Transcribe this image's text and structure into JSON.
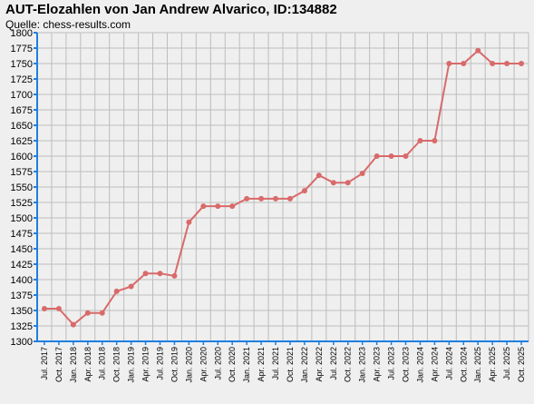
{
  "chart_data": {
    "type": "line",
    "title": "AUT-Elozahlen von Jan Andrew Alvarico, ID:134882",
    "subtitle": "Quelle: chess-results.com",
    "xlabel": "",
    "ylabel": "",
    "ylim": [
      1300,
      1800
    ],
    "yticks": [
      1300,
      1325,
      1350,
      1375,
      1400,
      1425,
      1450,
      1475,
      1500,
      1525,
      1550,
      1575,
      1600,
      1625,
      1650,
      1675,
      1700,
      1725,
      1750,
      1775,
      1800
    ],
    "grid": true,
    "legend": "none",
    "colors": {
      "line": "#d96a6a",
      "marker": "#d96a6a",
      "grid": "#bdbdbd",
      "axis": "#1e7fe0",
      "background": "#efefef"
    },
    "categories": [
      "Jul. 2017",
      "Oct. 2017",
      "Jan. 2018",
      "Apr. 2018",
      "Jul. 2018",
      "Oct. 2018",
      "Jan. 2019",
      "Apr. 2019",
      "Jul. 2019",
      "Oct. 2019",
      "Jan. 2020",
      "Apr. 2020",
      "Jul. 2020",
      "Oct. 2020",
      "Jan. 2021",
      "Apr. 2021",
      "Jul. 2021",
      "Oct. 2021",
      "Jan. 2022",
      "Apr. 2022",
      "Jul. 2022",
      "Oct. 2022",
      "Jan. 2023",
      "Apr. 2023",
      "Jul. 2023",
      "Oct. 2023",
      "Jan. 2024",
      "Apr. 2024",
      "Jul. 2024",
      "Oct. 2024",
      "Jan. 2025",
      "Apr. 2025",
      "Jul. 2025",
      "Oct. 2025"
    ],
    "values": [
      1353,
      1353,
      1327,
      1346,
      1346,
      1381,
      1389,
      1410,
      1410,
      1406,
      1493,
      1519,
      1519,
      1519,
      1531,
      1531,
      1531,
      1531,
      1544,
      1569,
      1557,
      1557,
      1572,
      1600,
      1600,
      1600,
      1625,
      1625,
      1750,
      1750,
      1771,
      1750,
      1750,
      1750
    ]
  }
}
